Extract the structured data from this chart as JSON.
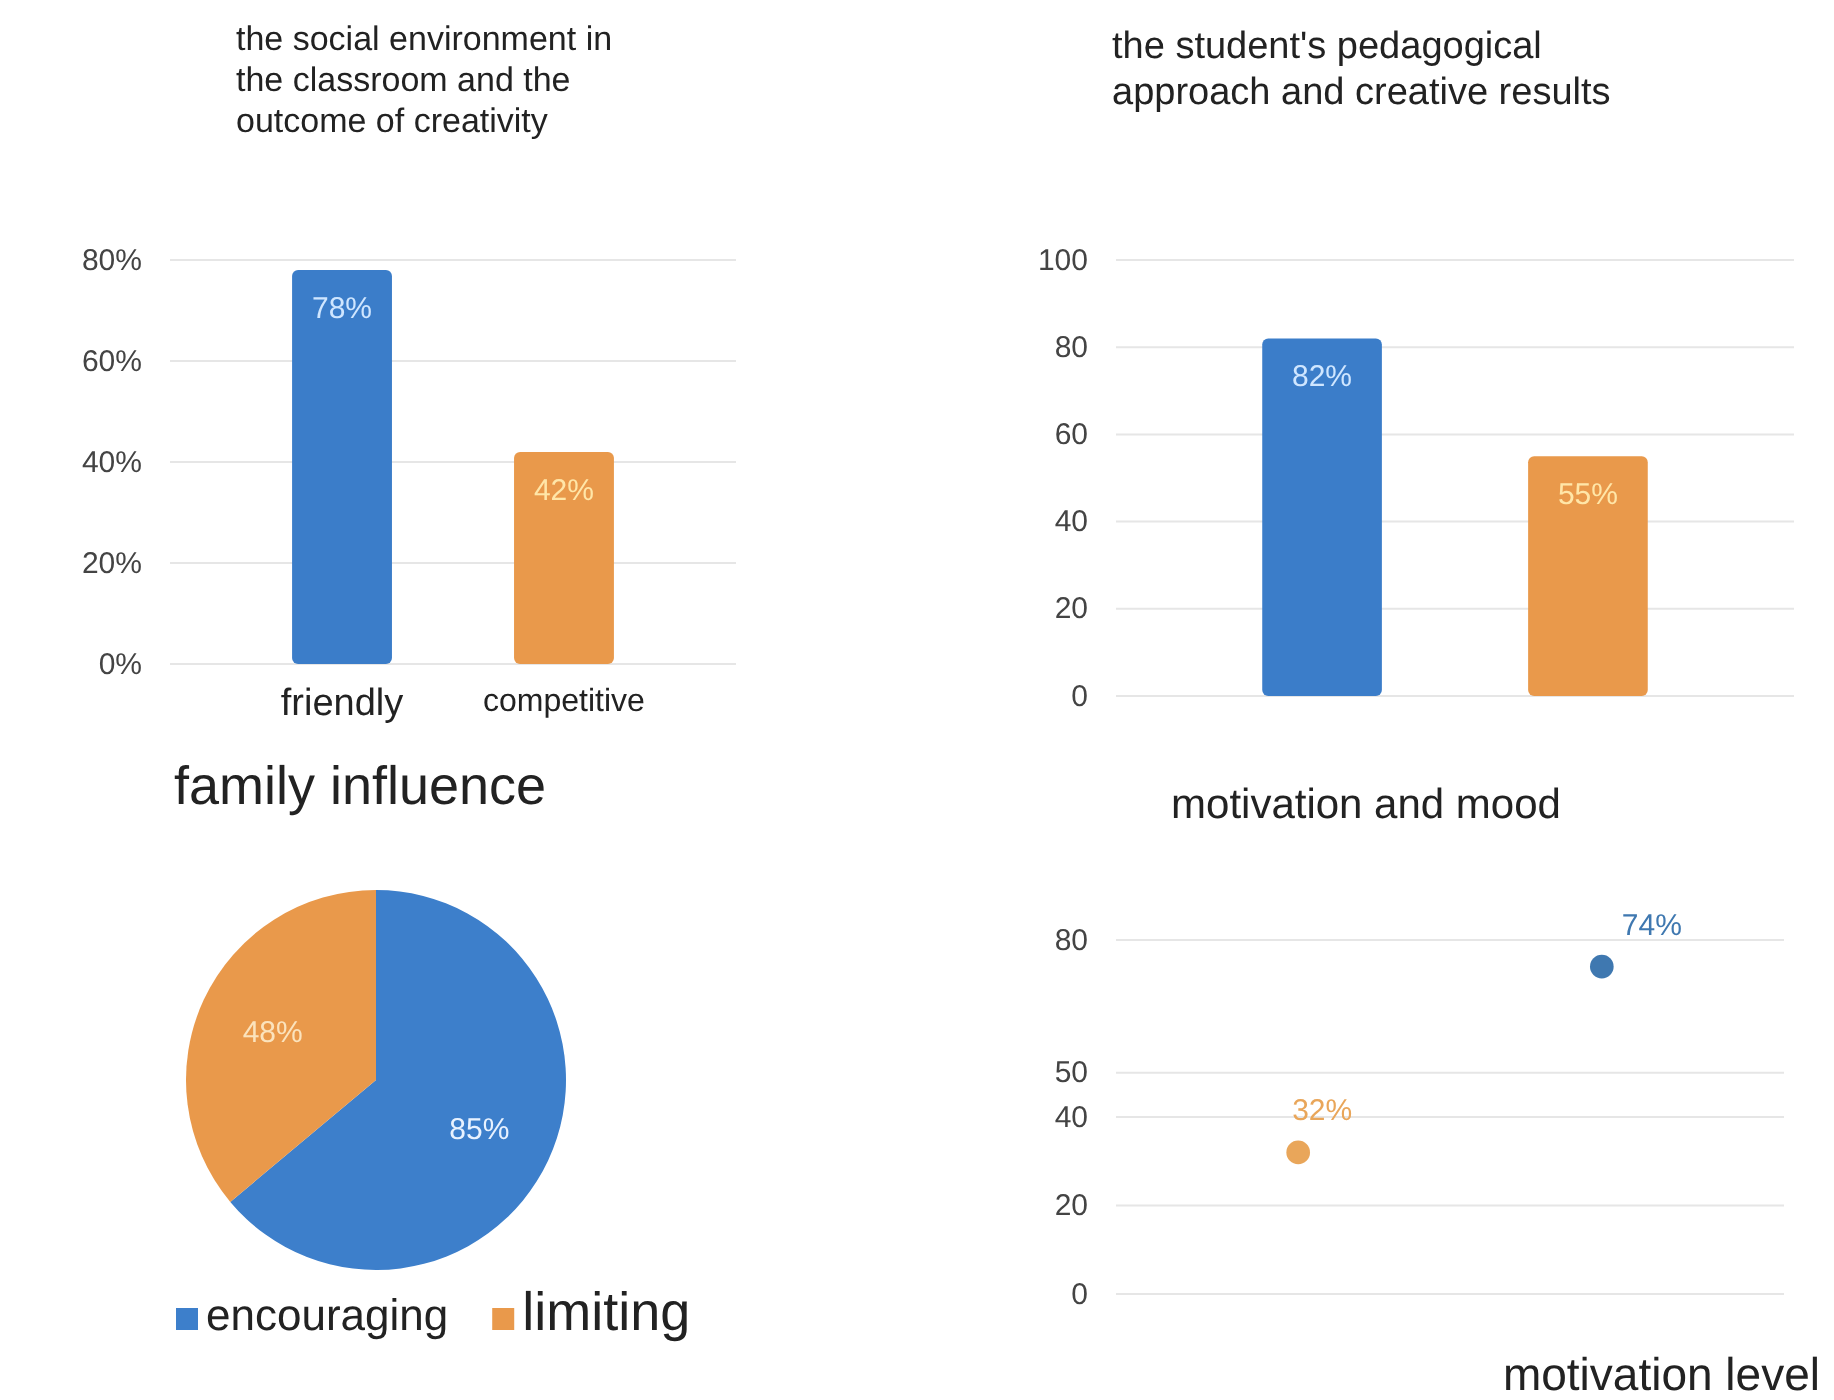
{
  "chart_data": [
    {
      "type": "bar",
      "title": "the social environment in the classroom and the outcome of creativity",
      "categories": [
        "friendly",
        "competitive"
      ],
      "values": [
        78,
        42
      ],
      "value_labels": [
        "78%",
        "42%"
      ],
      "colors": [
        "#3b7dc9",
        "#e9994b"
      ],
      "ylim": [
        0,
        80
      ],
      "yticks": [
        {
          "value": 0,
          "label": "0%"
        },
        {
          "value": 20,
          "label": "20%"
        },
        {
          "value": 40,
          "label": "40%"
        },
        {
          "value": 60,
          "label": "60%"
        },
        {
          "value": 80,
          "label": "80%"
        }
      ],
      "grid": "y"
    },
    {
      "type": "bar",
      "title": "the student's pedagogical approach and creative results",
      "categories": [
        null,
        null
      ],
      "values": [
        82,
        55
      ],
      "value_labels": [
        "82%",
        "55%"
      ],
      "colors": [
        "#3b7dc9",
        "#e9994b"
      ],
      "ylim": [
        0,
        100
      ],
      "yticks": [
        0,
        20,
        40,
        60,
        80,
        100
      ],
      "grid": "y"
    },
    {
      "type": "pie",
      "title": "family influence",
      "categories": [
        "encouraging",
        "limiting"
      ],
      "values": [
        85,
        48
      ],
      "value_labels": [
        "85%",
        "48%"
      ],
      "colors": [
        "#3d7fcb",
        "#e9994b"
      ],
      "legend": "bottom"
    },
    {
      "type": "scatter",
      "title": "motivation and mood",
      "xlabel": "motivation level",
      "categories": [
        null,
        null
      ],
      "values": [
        32,
        74
      ],
      "value_labels": [
        "32%",
        "74%"
      ],
      "colors": [
        "#e9a65a",
        "#3f78b0"
      ],
      "marker": "circle",
      "ylim": [
        0,
        80
      ],
      "yticks": [
        0,
        20,
        40,
        50,
        80
      ],
      "grid": "y"
    }
  ]
}
